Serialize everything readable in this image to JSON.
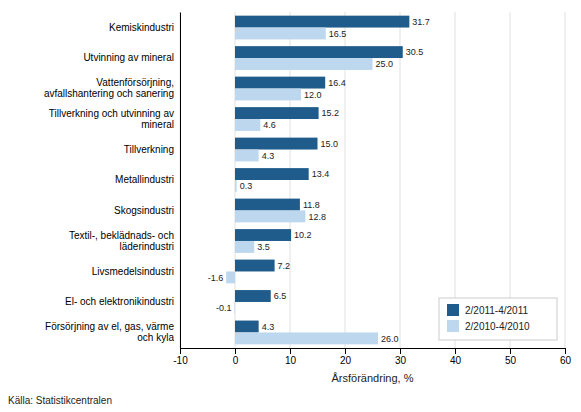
{
  "chart_data": {
    "type": "bar",
    "orientation": "horizontal",
    "categories": [
      "Kemiskindustri",
      "Utvinning av mineral",
      "Vattenförsörjning, avfallshantering och sanering",
      "Tillverkning och utvinning av mineral",
      "Tillverkning",
      "Metallindustri",
      "Skogsindustri",
      "Textil-, beklädnads- och läderindustri",
      "Livsmedelsindustri",
      "El- och elektronikindustri",
      "Försörjning av el, gas, värme och kyla"
    ],
    "series": [
      {
        "name": "2/2011-4/2011",
        "color": "#1F5C8B",
        "values": [
          31.7,
          30.5,
          16.4,
          15.2,
          15.0,
          13.4,
          11.8,
          10.2,
          7.2,
          6.5,
          4.3
        ],
        "value_labels": [
          "31.7",
          "30.5",
          "16.4",
          "15.2",
          "15.0",
          "13.4",
          "11.8",
          "10.2",
          "7.2",
          "6.5",
          "4.3"
        ]
      },
      {
        "name": "2/2010-4/2010",
        "color": "#BDD7EE",
        "values": [
          16.5,
          25.0,
          12.0,
          4.6,
          4.3,
          0.3,
          12.8,
          3.5,
          -1.6,
          -0.1,
          26.0
        ],
        "value_labels": [
          "16.5",
          "25.0",
          "12.0",
          "4.6",
          "4.3",
          "0.3",
          "12.8",
          "3.5",
          "-1.6",
          "-0.1",
          "26.0"
        ]
      }
    ],
    "xlabel": "Årsförändring, %",
    "xlim": [
      -10,
      60
    ],
    "xticks": [
      -10,
      0,
      10,
      20,
      30,
      40,
      50,
      60
    ],
    "grid": true,
    "legend": "lower right",
    "data_labels": true,
    "annotations": [
      "Källa: Statistikcentralen"
    ]
  }
}
